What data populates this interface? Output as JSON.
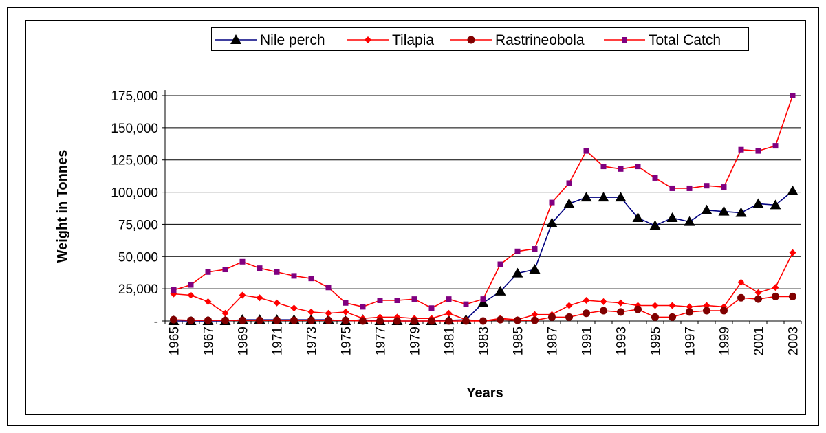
{
  "chart_data": {
    "type": "line",
    "categories": [
      "1965",
      null,
      "1967",
      null,
      "1969",
      null,
      "1971",
      null,
      "1973",
      null,
      "1975",
      null,
      "1977",
      null,
      "1979",
      null,
      "1981",
      null,
      "1983",
      null,
      "1985",
      null,
      "1987",
      null,
      "1991",
      null,
      "1993",
      null,
      "1995",
      null,
      "1997",
      null,
      "1999",
      null,
      "2001",
      null,
      "2003"
    ],
    "x_label": "Years",
    "y_label": "Weight in Tonnes",
    "ylim": [
      0,
      175000
    ],
    "yticks": [
      {
        "value": 0,
        "label": "-"
      },
      {
        "value": 25000,
        "label": "25,000"
      },
      {
        "value": 50000,
        "label": "50,000"
      },
      {
        "value": 75000,
        "label": "75,000"
      },
      {
        "value": 100000,
        "label": "100,000"
      },
      {
        "value": 125000,
        "label": "125,000"
      },
      {
        "value": 150000,
        "label": "150,000"
      },
      {
        "value": 175000,
        "label": "175,000"
      }
    ],
    "grid": true,
    "legend": "top",
    "series": [
      {
        "name": "Nile perch",
        "color": "#000080",
        "marker": "triangle",
        "marker_color": "#000000",
        "values": [
          0,
          0,
          0,
          0,
          1000,
          1000,
          1000,
          1000,
          1000,
          1000,
          0,
          1000,
          0,
          0,
          0,
          0,
          500,
          1000,
          14000,
          23000,
          37000,
          40000,
          76000,
          91000,
          96000,
          96000,
          96000,
          80000,
          74000,
          80000,
          77000,
          86000,
          85000,
          84000,
          91000,
          90000,
          101000
        ]
      },
      {
        "name": "Tilapia",
        "color": "#ff0000",
        "marker": "diamond",
        "marker_color": "#ff0000",
        "values": [
          21000,
          20000,
          15000,
          6000,
          20000,
          18000,
          14000,
          10000,
          7000,
          6000,
          7000,
          2000,
          3000,
          3000,
          2000,
          2000,
          6000,
          1000,
          0,
          2000,
          1000,
          5000,
          5000,
          12000,
          16000,
          15000,
          14000,
          12000,
          12000,
          12000,
          11000,
          12000,
          11000,
          30000,
          22000,
          26000,
          53000
        ]
      },
      {
        "name": "Rastrineobola",
        "color": "#ff0000",
        "marker": "circle",
        "marker_color": "#800000",
        "values": [
          1000,
          500,
          500,
          500,
          500,
          500,
          500,
          500,
          500,
          500,
          500,
          0,
          0,
          0,
          0,
          0,
          0,
          0,
          0,
          1000,
          500,
          500,
          3000,
          3000,
          6000,
          8000,
          7000,
          9000,
          3000,
          3000,
          7000,
          8000,
          8000,
          18000,
          17000,
          19000,
          19000
        ]
      },
      {
        "name": "Total Catch",
        "color": "#ff0000",
        "marker": "square",
        "marker_color": "#800080",
        "values": [
          24000,
          28000,
          38000,
          40000,
          46000,
          41000,
          38000,
          35000,
          33000,
          26000,
          14000,
          11000,
          16000,
          16000,
          17000,
          10000,
          17000,
          13000,
          17000,
          44000,
          54000,
          56000,
          92000,
          107000,
          132000,
          120000,
          118000,
          120000,
          111000,
          103000,
          103000,
          105000,
          104000,
          133000,
          132000,
          136000,
          175000
        ]
      }
    ]
  }
}
